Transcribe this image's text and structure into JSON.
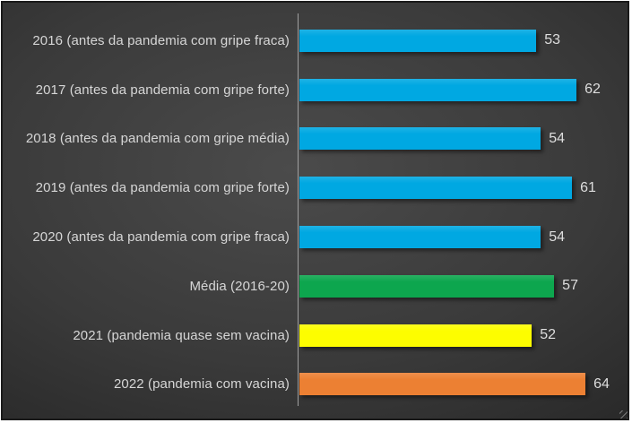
{
  "chart_data": {
    "type": "bar",
    "orientation": "horizontal",
    "title": "",
    "xlabel": "",
    "ylabel": "",
    "categories": [
      "2016 (antes da pandemia com gripe fraca)",
      "2017 (antes da pandemia com gripe forte)",
      "2018 (antes da pandemia com gripe média)",
      "2019 (antes da pandemia com gripe forte)",
      "2020 (antes da pandemia com gripe fraca)",
      "Média (2016-20)",
      "2021 (pandemia quase sem vacina)",
      "2022 (pandemia com vacina)"
    ],
    "values": [
      53,
      62,
      54,
      61,
      54,
      57,
      52,
      64
    ],
    "bar_colors": [
      "#00A8E2",
      "#00A8E2",
      "#00A8E2",
      "#00A8E2",
      "#00A8E2",
      "#0DA64E",
      "#FDFD00",
      "#EC8033"
    ],
    "xlim": [
      0,
      70
    ],
    "grid": false,
    "legend": false,
    "data_labels_shown": true
  },
  "style": {
    "background_inner": "#4b4b4b",
    "background_outer": "#262626",
    "axis_line_color": "#A0A0A0",
    "category_label_color": "#D6D6D6",
    "value_label_color": "#DEDEDE",
    "border_color": "#1A1A1A"
  }
}
